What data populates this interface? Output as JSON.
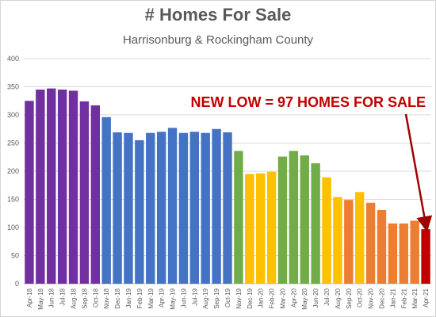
{
  "chart_data": {
    "type": "bar",
    "title": "# Homes For Sale",
    "subtitle": "Harrisonburg & Rockingham County",
    "xlabel": "",
    "ylabel": "",
    "ylim": [
      0,
      400
    ],
    "yticks": [
      0,
      50,
      100,
      150,
      200,
      250,
      300,
      350,
      400
    ],
    "grid": true,
    "legend": "none",
    "categories": [
      "Apr-18",
      "May-18",
      "Jun-18",
      "Jul-18",
      "Aug-18",
      "Sep-18",
      "Oct-18",
      "Nov-18",
      "Dec-18",
      "Jan-19",
      "Feb-19",
      "Mar-19",
      "Apr-19",
      "May-19",
      "Jun-19",
      "Jul-19",
      "Aug-19",
      "Sep-19",
      "Oct-19",
      "Nov-19",
      "Dec-19",
      "Jan-20",
      "Feb-20",
      "Mar-20",
      "Apr-20",
      "May-20",
      "Jun-20",
      "Jul-20",
      "Aug-20",
      "Sep-20",
      "Oct-20",
      "Nov-20",
      "Dec-20",
      "Jan-21",
      "Feb-21",
      "Mar-21",
      "Apr-21"
    ],
    "values": [
      325,
      345,
      347,
      345,
      343,
      324,
      317,
      296,
      269,
      268,
      255,
      268,
      270,
      277,
      268,
      270,
      268,
      275,
      269,
      236,
      195,
      196,
      199,
      226,
      236,
      228,
      214,
      189,
      154,
      149,
      163,
      144,
      131,
      107,
      107,
      112,
      97
    ],
    "colors": [
      "#7030a0",
      "#7030a0",
      "#7030a0",
      "#7030a0",
      "#7030a0",
      "#7030a0",
      "#7030a0",
      "#4472c4",
      "#4472c4",
      "#4472c4",
      "#4472c4",
      "#4472c4",
      "#4472c4",
      "#4472c4",
      "#4472c4",
      "#4472c4",
      "#4472c4",
      "#4472c4",
      "#4472c4",
      "#70ad47",
      "#ffc000",
      "#ffc000",
      "#ffc000",
      "#70ad47",
      "#70ad47",
      "#70ad47",
      "#70ad47",
      "#ffc000",
      "#ffc000",
      "#ed7d31",
      "#ffc000",
      "#ed7d31",
      "#ed7d31",
      "#ed7d31",
      "#ed7d31",
      "#ed7d31",
      "#c00000"
    ],
    "annotation": {
      "text": "NEW LOW = 97 HOMES FOR SALE",
      "color": "#c00000",
      "target_category": "Apr-21"
    }
  }
}
